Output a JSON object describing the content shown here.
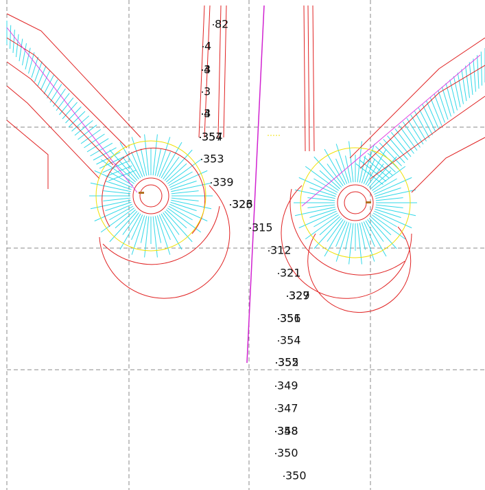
{
  "labels": [
    {
      "text": "82"
    },
    {
      "text": "4"
    },
    {
      "text": "3"
    },
    {
      "text": "4"
    },
    {
      "text": "3"
    },
    {
      "text": "3"
    },
    {
      "text": "4"
    },
    {
      "text": "357"
    },
    {
      "text": "354"
    },
    {
      "text": "353"
    },
    {
      "text": "339"
    },
    {
      "text": "326"
    },
    {
      "text": "323"
    },
    {
      "text": "315"
    },
    {
      "text": "312"
    },
    {
      "text": "321"
    },
    {
      "text": "329"
    },
    {
      "text": "327"
    },
    {
      "text": "356"
    },
    {
      "text": "351"
    },
    {
      "text": "354"
    },
    {
      "text": "355"
    },
    {
      "text": "352"
    },
    {
      "text": "349"
    },
    {
      "text": "347"
    },
    {
      "text": "358"
    },
    {
      "text": "348"
    },
    {
      "text": "350"
    },
    {
      "text": "350"
    }
  ]
}
